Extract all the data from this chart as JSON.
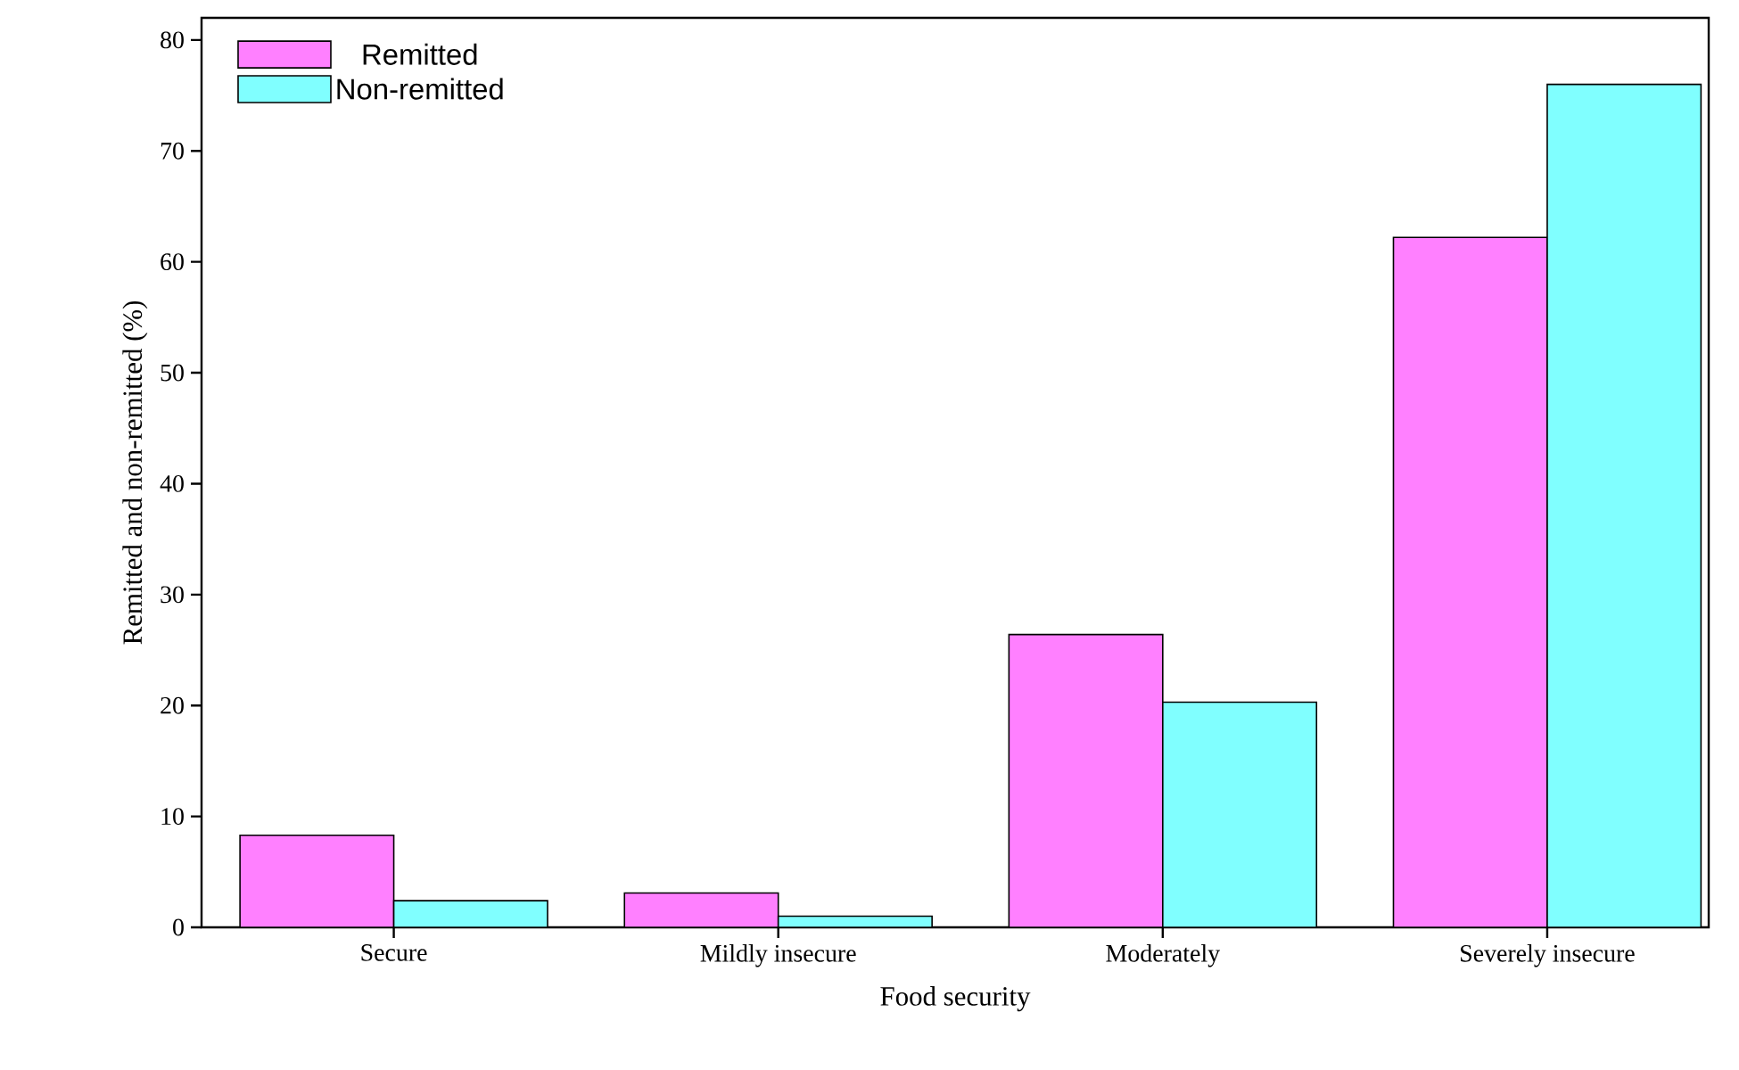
{
  "chart_data": {
    "type": "bar",
    "xlabel": "Food security",
    "ylabel": "Remitted and non-remitted (%)",
    "categories": [
      "Secure",
      "Mildly insecure",
      "Moderately",
      "Severely insecure"
    ],
    "series": [
      {
        "name": "Remitted",
        "color": "#ff80ff",
        "values": [
          8.3,
          3.1,
          26.4,
          62.2
        ]
      },
      {
        "name": "Non-remitted",
        "color": "#80ffff",
        "values": [
          2.4,
          1.0,
          20.3,
          76.0
        ]
      }
    ],
    "ylim": [
      0,
      82
    ],
    "yticks": [
      0,
      10,
      20,
      30,
      40,
      50,
      60,
      70,
      80
    ],
    "legend": "top left",
    "grid": false
  }
}
